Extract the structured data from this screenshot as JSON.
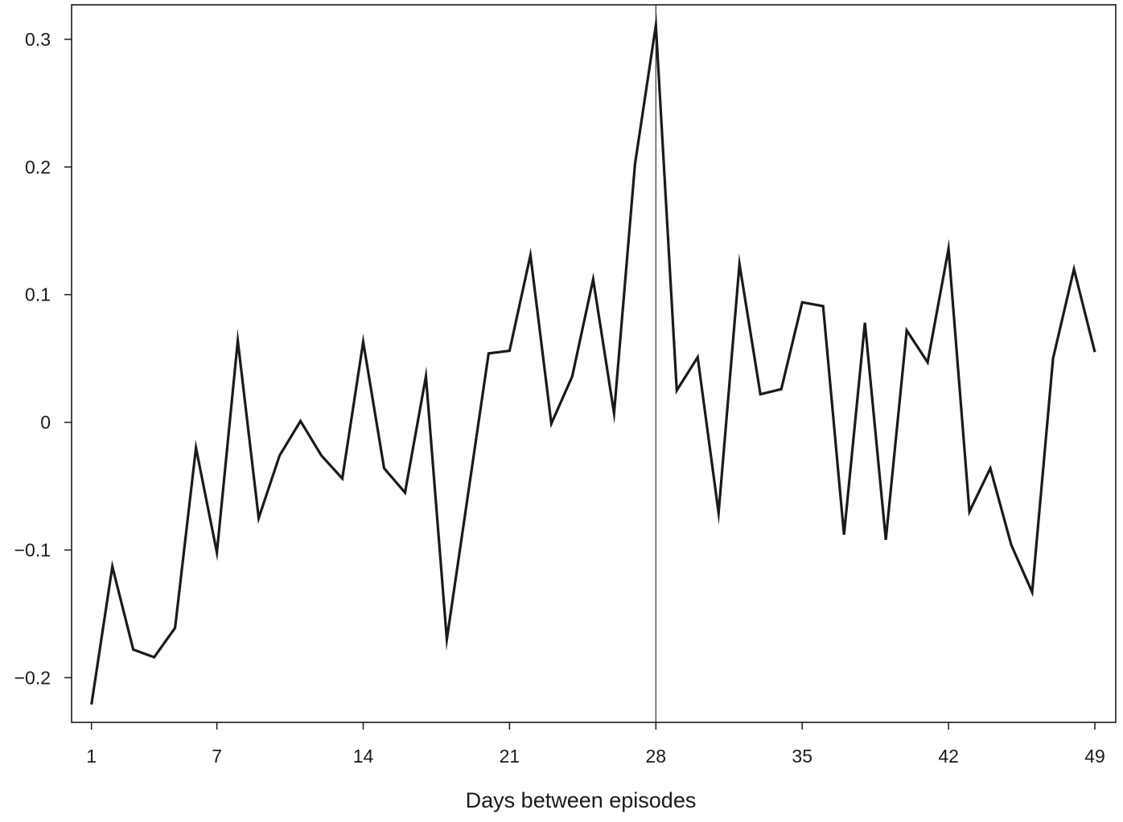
{
  "chart_data": {
    "type": "line",
    "title": "",
    "xlabel": "Days between episodes",
    "ylabel": "",
    "xlim": [
      0.05,
      50.0
    ],
    "ylim": [
      -0.235,
      0.327
    ],
    "x_ticks": [
      1,
      7,
      14,
      21,
      28,
      35,
      42,
      49
    ],
    "x_tick_labels": [
      "1",
      "7",
      "14",
      "21",
      "28",
      "35",
      "42",
      "49"
    ],
    "y_ticks": [
      -0.2,
      -0.1,
      0,
      0.1,
      0.2,
      0.3
    ],
    "y_tick_labels": [
      "−0.2",
      "−0.1",
      "0",
      "0.1",
      "0.2",
      "0.3"
    ],
    "reference_line_x": 28,
    "grid": false,
    "line_color": "#1a1a1a",
    "series": [
      {
        "x": [
          1,
          2,
          3,
          4,
          5,
          6,
          7,
          8,
          9,
          10,
          11,
          12,
          13,
          14,
          15,
          16,
          17,
          18,
          19,
          20,
          21,
          22,
          23,
          24,
          25,
          26,
          27,
          28,
          29,
          30,
          31,
          32,
          33,
          34,
          35,
          36,
          37,
          38,
          39,
          40,
          41,
          42,
          43,
          44,
          45,
          46,
          47,
          48,
          49
        ],
        "values": [
          -0.221,
          -0.113,
          -0.178,
          -0.184,
          -0.161,
          -0.02,
          -0.102,
          0.064,
          -0.075,
          -0.026,
          0.001,
          -0.026,
          -0.044,
          0.063,
          -0.036,
          -0.055,
          0.036,
          -0.17,
          -0.058,
          0.054,
          0.056,
          0.131,
          -0.001,
          0.036,
          0.112,
          0.007,
          0.202,
          0.311,
          0.025,
          0.051,
          -0.071,
          0.124,
          0.022,
          0.026,
          0.094,
          0.091,
          -0.088,
          0.078,
          -0.092,
          0.072,
          0.047,
          0.136,
          -0.07,
          -0.036,
          -0.096,
          -0.133,
          0.05,
          0.12,
          0.055
        ]
      }
    ]
  }
}
